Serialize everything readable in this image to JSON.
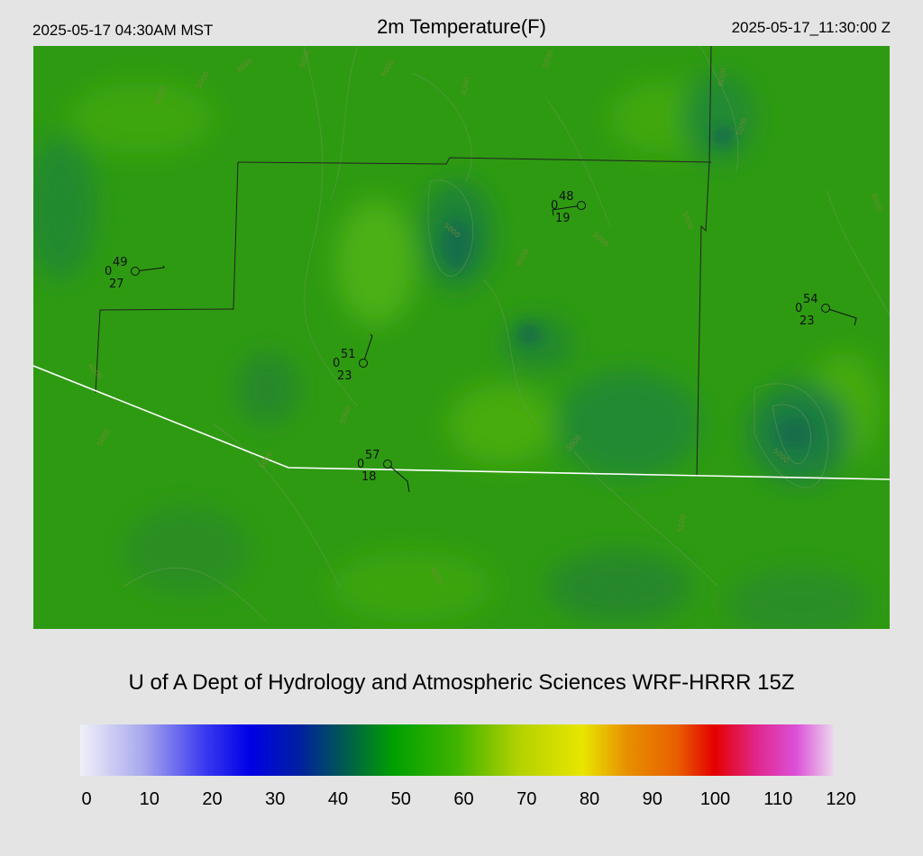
{
  "header": {
    "local_time": "2025-05-17 04:30AM MST",
    "title": "2m Temperature(F)",
    "utc_time": "2025-05-17_11:30:00 Z"
  },
  "credit": "U of A Dept of Hydrology and Atmospheric Sciences WRF-HRRR 15Z",
  "colorbar": {
    "ticks": [
      "0",
      "10",
      "20",
      "30",
      "40",
      "50",
      "60",
      "70",
      "80",
      "90",
      "100",
      "110",
      "120"
    ],
    "stops": [
      {
        "value": 0,
        "color": "#f0f0f8"
      },
      {
        "value": 10,
        "color": "#a8a8ee"
      },
      {
        "value": 20,
        "color": "#3838f0"
      },
      {
        "value": 27,
        "color": "#0000e6"
      },
      {
        "value": 35,
        "color": "#0020a0"
      },
      {
        "value": 42,
        "color": "#005a50"
      },
      {
        "value": 50,
        "color": "#00a000"
      },
      {
        "value": 60,
        "color": "#40b400"
      },
      {
        "value": 70,
        "color": "#b4d200"
      },
      {
        "value": 80,
        "color": "#e8e600"
      },
      {
        "value": 87,
        "color": "#e89000"
      },
      {
        "value": 95,
        "color": "#e86000"
      },
      {
        "value": 101,
        "color": "#e40000"
      },
      {
        "value": 108,
        "color": "#e02890"
      },
      {
        "value": 114,
        "color": "#dc50d8"
      },
      {
        "value": 120,
        "color": "#ecd8ec"
      }
    ]
  },
  "map": {
    "base_color": "#2e9a12",
    "contour_labels": [
      "5000",
      "6000",
      "5000",
      "6000",
      "4000",
      "5000",
      "6000",
      "5000",
      "4000",
      "5000",
      "6000",
      "5000",
      "5000",
      "6000",
      "5000",
      "5000",
      "4000",
      "5000",
      "5000",
      "5000",
      "4000",
      "5000"
    ],
    "stations": [
      {
        "temp": "49",
        "dew": "27",
        "gust": "0"
      },
      {
        "temp": "48",
        "dew": "19",
        "gust": "0"
      },
      {
        "temp": "54",
        "dew": "23",
        "gust": "0"
      },
      {
        "temp": "51",
        "dew": "23",
        "gust": "0"
      },
      {
        "temp": "57",
        "dew": "18",
        "gust": "0"
      }
    ]
  }
}
